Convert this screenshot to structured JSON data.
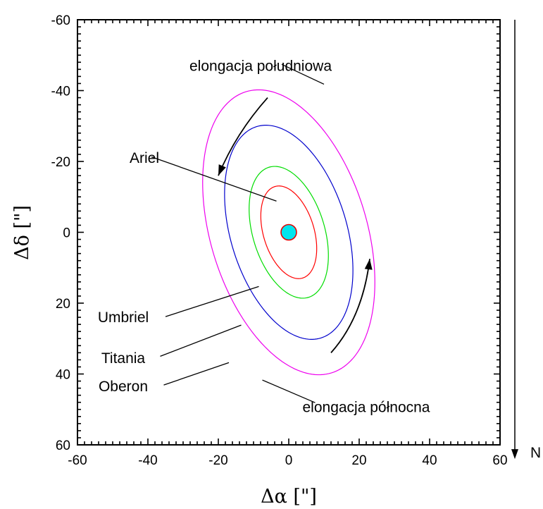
{
  "chart_data": {
    "type": "line",
    "title": "",
    "xlabel": "Δα [\"]",
    "ylabel": "Δδ [\"]",
    "xlim": [
      -60,
      60
    ],
    "ylim": [
      60,
      -60
    ],
    "y_inverted": true,
    "grid": false,
    "xticks": [
      -60,
      -40,
      -20,
      0,
      20,
      40,
      60
    ],
    "yticks": [
      -60,
      -40,
      -20,
      0,
      20,
      40,
      60
    ],
    "xtick_labels": [
      "-60",
      "-40",
      "-20",
      "0",
      "20",
      "40",
      "60"
    ],
    "ytick_labels": [
      "-60",
      "-40",
      "-20",
      "0",
      "20",
      "40",
      "60"
    ],
    "planet": {
      "x": 0,
      "y": 0,
      "radius": 2.2,
      "color": "#00e5ee",
      "edge": "#e60000"
    },
    "series": [
      {
        "name": "Ariel",
        "color": "#ff0000",
        "cx": 0,
        "cy": 0,
        "a": 7.2,
        "b": 13.5,
        "tilt_deg": 17
      },
      {
        "name": "Umbriel",
        "color": "#00dd00",
        "cx": 0,
        "cy": 0,
        "a": 10.2,
        "b": 19.2,
        "tilt_deg": 17
      },
      {
        "name": "Titania",
        "color": "#0000cc",
        "cx": 0,
        "cy": 0,
        "a": 16.5,
        "b": 31.2,
        "tilt_deg": 17
      },
      {
        "name": "Oberon",
        "color": "#ee00ee",
        "cx": 0,
        "cy": 0,
        "a": 22.2,
        "b": 41.5,
        "tilt_deg": 17
      }
    ],
    "annotations": [
      {
        "text": "elongacja południowa",
        "text_x": -8,
        "text_y": -47,
        "anchor": "middle",
        "leader": [
          [
            -2,
            -47.4
          ],
          [
            10,
            -41.8
          ]
        ]
      },
      {
        "text": "Ariel",
        "text_x": -41,
        "text_y": -21,
        "anchor": "middle",
        "leader": [
          [
            -39,
            -21.3
          ],
          [
            -3.5,
            -8.8
          ]
        ]
      },
      {
        "text": "Umbriel",
        "text_x": -47,
        "text_y": 24,
        "anchor": "middle",
        "leader": [
          [
            -35,
            23.8
          ],
          [
            -8.5,
            15.3
          ]
        ]
      },
      {
        "text": "Titania",
        "text_x": -47,
        "text_y": 35.5,
        "anchor": "middle",
        "leader": [
          [
            -36.5,
            35
          ],
          [
            -13.5,
            26.2
          ]
        ]
      },
      {
        "text": "Oberon",
        "text_x": -47,
        "text_y": 43.5,
        "anchor": "middle",
        "leader": [
          [
            -35.5,
            43.1
          ],
          [
            -17,
            36.8
          ]
        ]
      },
      {
        "text": "elongacja północna",
        "text_x": 22,
        "text_y": 49.4,
        "anchor": "middle",
        "leader": [
          [
            7.5,
            48.1
          ],
          [
            -7.5,
            41.7
          ]
        ]
      }
    ],
    "arrows": [
      {
        "type": "arc",
        "from": [
          -6,
          -38
        ],
        "ctrl": [
          -15,
          -28
        ],
        "to": [
          -20,
          -16
        ]
      },
      {
        "type": "arc",
        "from": [
          12,
          34
        ],
        "ctrl": [
          21,
          24
        ],
        "to": [
          23,
          7.5
        ]
      }
    ],
    "north": {
      "label": "N",
      "from_y": -60,
      "to_y": 64
    }
  }
}
